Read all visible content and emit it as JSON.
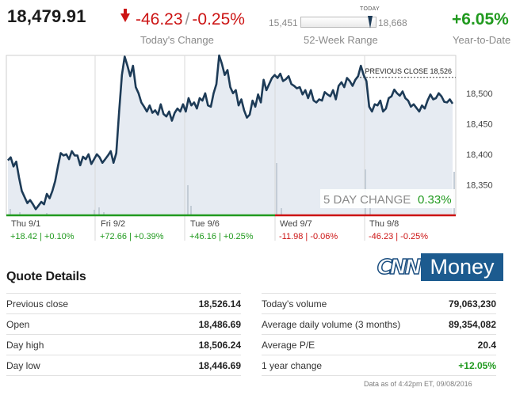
{
  "header": {
    "last_price": "18,479.91",
    "change_points": "-46.23",
    "change_separator": "/",
    "change_percent": "-0.25%",
    "change_label": "Today's Change",
    "range_low": "15,451",
    "range_high": "18,668",
    "range_today_label": "TODAY",
    "range_label": "52-Week Range",
    "range_today_fraction": 0.88,
    "ytd_change": "+6.05%",
    "ytd_label": "Year-to-Date"
  },
  "chart": {
    "previous_close_label": "PREVIOUS CLOSE 18,526",
    "five_day_label": "5 DAY CHANGE",
    "five_day_value": "0.33%",
    "y_ticks": [
      "18,500",
      "18,450",
      "18,400",
      "18,350"
    ],
    "days": [
      {
        "label": "Thu 9/1",
        "change": "+18.42 | +0.10%",
        "direction": "up"
      },
      {
        "label": "Fri 9/2",
        "change": "+72.66 | +0.39%",
        "direction": "up"
      },
      {
        "label": "Tue 9/6",
        "change": "+46.16 | +0.25%",
        "direction": "up"
      },
      {
        "label": "Wed 9/7",
        "change": "-11.98 | -0.06%",
        "direction": "down"
      },
      {
        "label": "Thu 9/8",
        "change": "-46.23 | -0.25%",
        "direction": "down"
      }
    ],
    "colors": {
      "line": "#1d3b57",
      "fill": "#e6ebf2",
      "up": "#219a1f",
      "down": "#cc1414"
    }
  },
  "chart_data": {
    "type": "line",
    "title": "",
    "xlabel": "",
    "ylabel": "",
    "ylim": [
      18300,
      18560
    ],
    "previous_close": 18526,
    "series": [
      {
        "values": [
          18390,
          18395,
          18380,
          18388,
          18362,
          18340,
          18330,
          18320,
          18325,
          18318,
          18310,
          18316,
          18322,
          18318,
          18335,
          18328,
          18340,
          18356,
          18380,
          18402,
          18398,
          18400,
          18392,
          18405,
          18398,
          18398,
          18382,
          18396,
          18392,
          18400,
          18384,
          18392,
          18400,
          18395,
          18386,
          18392,
          18398,
          18405,
          18386,
          18402,
          18470,
          18530,
          18560,
          18545,
          18528,
          18545,
          18510,
          18500,
          18485,
          18478,
          18470,
          18480,
          18468,
          18472,
          18465,
          18482,
          18466,
          18462,
          18470,
          18455,
          18468,
          18475,
          18470,
          18482,
          18470,
          18492,
          18480,
          18485,
          18475,
          18492,
          18488,
          18500,
          18480,
          18478,
          18500,
          18515,
          18562,
          18548,
          18530,
          18538,
          18510,
          18500,
          18505,
          18480,
          18490,
          18472,
          18460,
          18465,
          18488,
          18478,
          18498,
          18485,
          18522,
          18505,
          18515,
          18525,
          18530,
          18525,
          18532,
          18520,
          18523,
          18528,
          18515,
          18512,
          18508,
          18510,
          18498,
          18505,
          18492,
          18505,
          18488,
          18485,
          18490,
          18488,
          18502,
          18498,
          18495,
          18505,
          18490,
          18512,
          18518,
          18510,
          18525,
          18520,
          18512,
          18522,
          18528,
          18545,
          18530,
          18520,
          18478,
          18470,
          18482,
          18480,
          18488,
          18470,
          18475,
          18492,
          18495,
          18506,
          18500,
          18496,
          18503,
          18492,
          18488,
          18478,
          18482,
          18476,
          18470,
          18480,
          18475,
          18488,
          18498,
          18490,
          18492,
          18500,
          18495,
          18486,
          18485,
          18490,
          18483
        ]
      }
    ]
  },
  "quote_details": {
    "title": "Quote Details",
    "left": [
      {
        "label": "Previous close",
        "value": "18,526.14"
      },
      {
        "label": "Open",
        "value": "18,486.69"
      },
      {
        "label": "Day high",
        "value": "18,506.24"
      },
      {
        "label": "Day low",
        "value": "18,446.69"
      }
    ],
    "right": [
      {
        "label": "Today's volume",
        "value": "79,063,230"
      },
      {
        "label": "Average daily volume (3 months)",
        "value": "89,354,082"
      },
      {
        "label": "Average P/E",
        "value": "20.4"
      },
      {
        "label": "1 year change",
        "value": "+12.05%",
        "color": "#219a1f"
      }
    ]
  },
  "logo": {
    "left_text": "CNN",
    "right_text": "Money"
  },
  "as_of": "Data as of 4:42pm ET, 09/08/2016"
}
